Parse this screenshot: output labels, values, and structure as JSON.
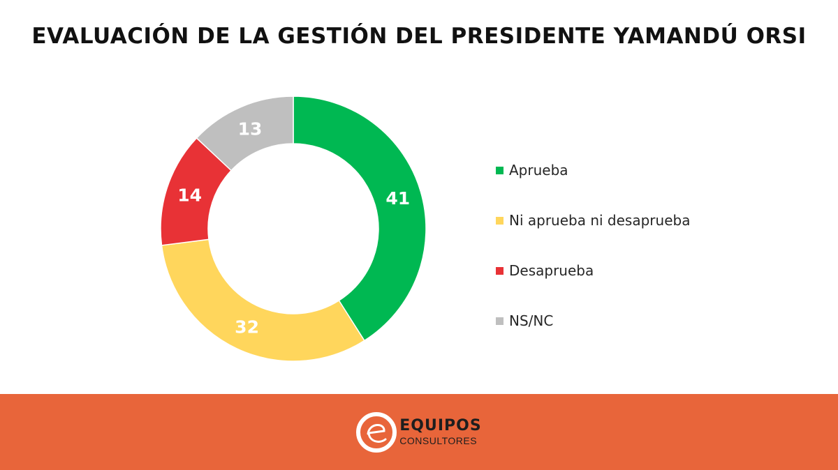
{
  "colors": {
    "background": "#ffffff",
    "footer": "#E8653A",
    "aprueba": "#00B852",
    "ni": "#FFD65C",
    "desaprueba": "#E83236",
    "nsnc": "#BFBFBF"
  },
  "chart_data": {
    "type": "pie",
    "title": "EVALUACIÓN DE LA GESTIÓN DEL PRESIDENTE YAMANDÚ ORSI",
    "donut": true,
    "legend_position": "right",
    "slices": [
      {
        "name": "Aprueba",
        "value": 41,
        "label": "41",
        "color": "#00B852"
      },
      {
        "name": "Ni aprueba ni desaprueba",
        "value": 32,
        "label": "32",
        "color": "#FFD65C"
      },
      {
        "name": "Desaprueba",
        "value": 14,
        "label": "14",
        "color": "#E83236"
      },
      {
        "name": "NS/NC",
        "value": 13,
        "label": "13",
        "color": "#BFBFBF"
      }
    ]
  },
  "footer": {
    "brand_name": "EQUIPOS",
    "brand_sub": "CONSULTORES",
    "logo_icon": "equipos-e-icon"
  }
}
